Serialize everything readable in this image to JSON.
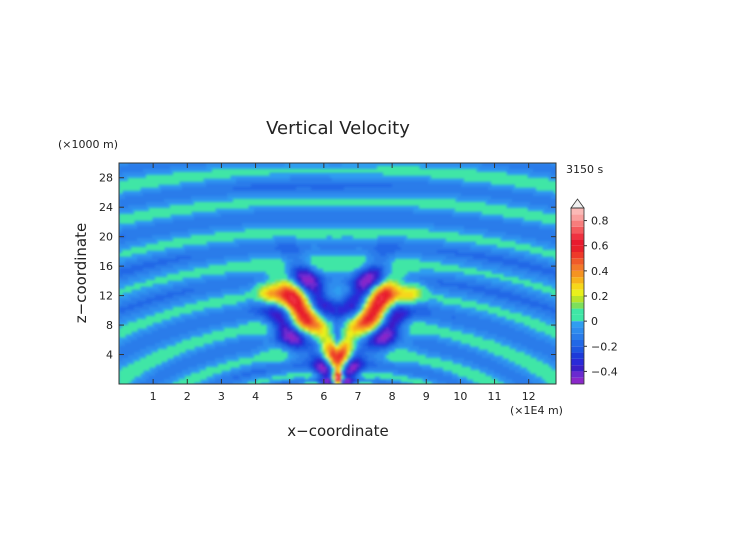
{
  "chart_data": {
    "type": "heatmap",
    "title": "Vertical Velocity",
    "time_label": "3150 s",
    "xlabel": "x−coordinate",
    "ylabel": "z−coordinate",
    "x_unit": "(×1E4 m)",
    "y_unit": "(×1000 m)",
    "xlim": [
      0,
      12.8
    ],
    "ylim": [
      0,
      30
    ],
    "x_ticks": [
      "1",
      "2",
      "3",
      "4",
      "5",
      "6",
      "7",
      "8",
      "9",
      "10",
      "11",
      "12"
    ],
    "y_ticks": [
      "4",
      "8",
      "12",
      "16",
      "20",
      "24",
      "28"
    ],
    "colorbar": {
      "ticks": [
        "0.8",
        "0.6",
        "0.4",
        "0.2",
        "0",
        "−0.2",
        "−0.4"
      ],
      "values": [
        0.8,
        0.6,
        0.4,
        0.2,
        0,
        -0.2,
        -0.4
      ],
      "range": [
        -0.5,
        0.9
      ],
      "extend_top_color": "#f0f0f0"
    },
    "colors": {
      "neutral": "#3fe6a6",
      "weak_negative": "#2e9bef",
      "background_field": "#2f9df0"
    },
    "features": [
      {
        "type": "wave_fans",
        "center_x": 6.4,
        "center_z": 0.3,
        "note_values": "alternating bands between about -0.1 and 0.05"
      },
      {
        "type": "maxima",
        "values": [
          0.6,
          0.5,
          0.4,
          -0.4,
          -0.3
        ],
        "region_x": [
          4.2,
          8.6
        ],
        "region_z": [
          1,
          16
        ]
      }
    ]
  }
}
